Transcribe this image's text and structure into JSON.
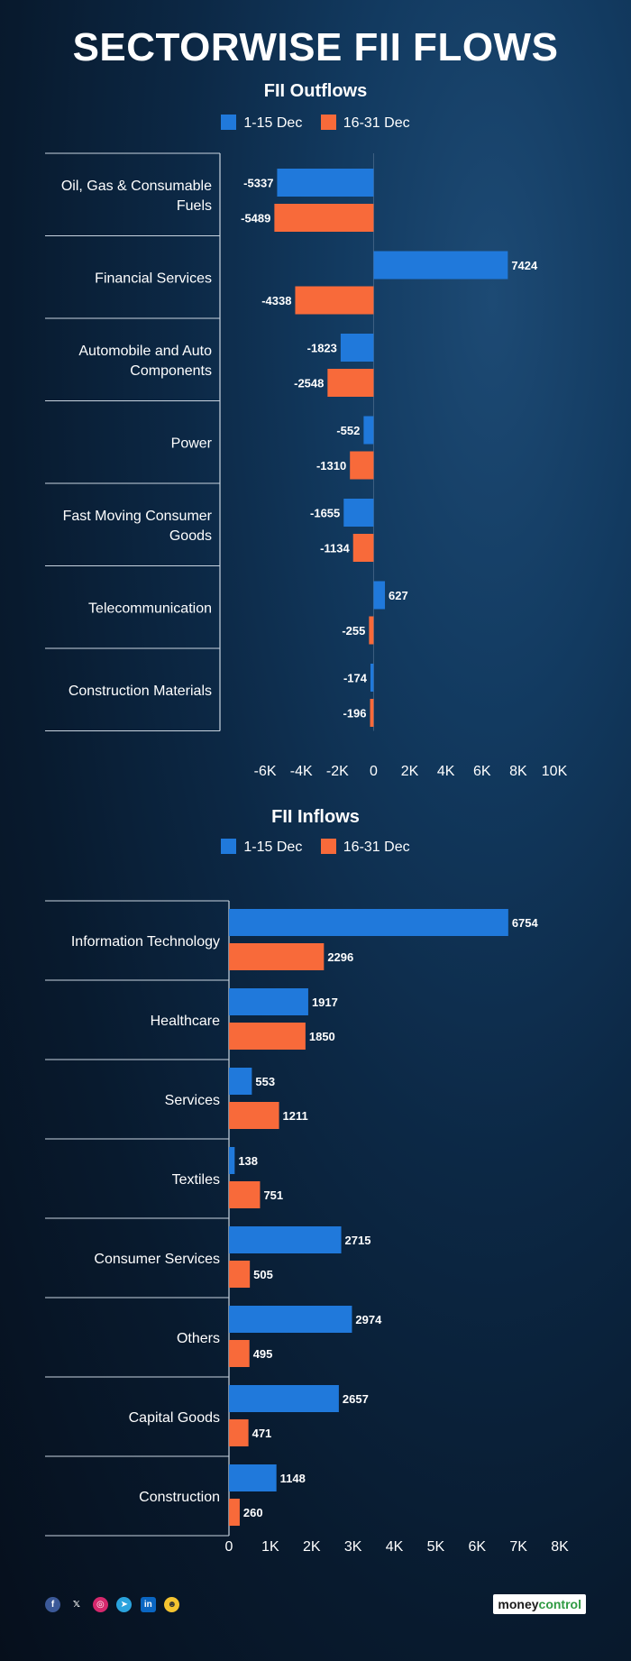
{
  "title": "SECTORWISE FII FLOWS",
  "colors": {
    "series1": "#2079db",
    "series2": "#f86a3a",
    "grid": "#c9d4e0"
  },
  "social_icons": [
    "facebook-icon",
    "x-icon",
    "instagram-icon",
    "telegram-icon",
    "linkedin-icon",
    "snapchat-icon"
  ],
  "brand": {
    "part1": "money",
    "part2": "control"
  },
  "chart_data": [
    {
      "type": "bar",
      "orientation": "horizontal",
      "title": "FII Outflows",
      "categories": [
        "Oil, Gas & Consumable Fuels",
        "Financial Services",
        "Automobile and Auto Components",
        "Power",
        "Fast Moving Consumer Goods",
        "Telecommunication",
        "Construction Materials"
      ],
      "category_lines": [
        [
          "Oil, Gas & Consumable",
          "Fuels"
        ],
        [
          "Financial Services"
        ],
        [
          "Automobile and Auto",
          "Components"
        ],
        [
          "Power"
        ],
        [
          "Fast Moving Consumer",
          "Goods"
        ],
        [
          "Telecommunication"
        ],
        [
          "Construction Materials"
        ]
      ],
      "series": [
        {
          "name": "1-15 Dec",
          "values": [
            -5337,
            7424,
            -1823,
            -552,
            -1655,
            627,
            -174
          ]
        },
        {
          "name": "16-31 Dec",
          "values": [
            -5489,
            -4338,
            -2548,
            -1310,
            -1134,
            -255,
            -196
          ]
        }
      ],
      "xlim": [
        -8500,
        10000
      ],
      "xticks": [
        -6000,
        -4000,
        -2000,
        0,
        2000,
        4000,
        6000,
        8000,
        10000
      ],
      "xtick_labels": [
        "-6K",
        "-4K",
        "-2K",
        "0",
        "2K",
        "4K",
        "6K",
        "8K",
        "10K"
      ],
      "legend_position": "top-center",
      "grid": false
    },
    {
      "type": "bar",
      "orientation": "horizontal",
      "title": "FII Inflows",
      "categories": [
        "Information Technology",
        "Healthcare",
        "Services",
        "Textiles",
        "Consumer Services",
        "Others",
        "Capital Goods",
        "Construction"
      ],
      "category_lines": [
        [
          "Information Technology"
        ],
        [
          "Healthcare"
        ],
        [
          "Services"
        ],
        [
          "Textiles"
        ],
        [
          "Consumer Services"
        ],
        [
          "Others"
        ],
        [
          "Capital Goods"
        ],
        [
          "Construction"
        ]
      ],
      "series": [
        {
          "name": "1-15 Dec",
          "values": [
            6754,
            1917,
            553,
            138,
            2715,
            2974,
            2657,
            1148
          ]
        },
        {
          "name": "16-31 Dec",
          "values": [
            2296,
            1850,
            1211,
            751,
            505,
            495,
            471,
            260
          ]
        }
      ],
      "xlim": [
        0,
        8000
      ],
      "xticks": [
        0,
        1000,
        2000,
        3000,
        4000,
        5000,
        6000,
        7000,
        8000
      ],
      "xtick_labels": [
        "0",
        "1K",
        "2K",
        "3K",
        "4K",
        "5K",
        "6K",
        "7K",
        "8K"
      ],
      "legend_position": "top-center",
      "grid": false
    }
  ]
}
